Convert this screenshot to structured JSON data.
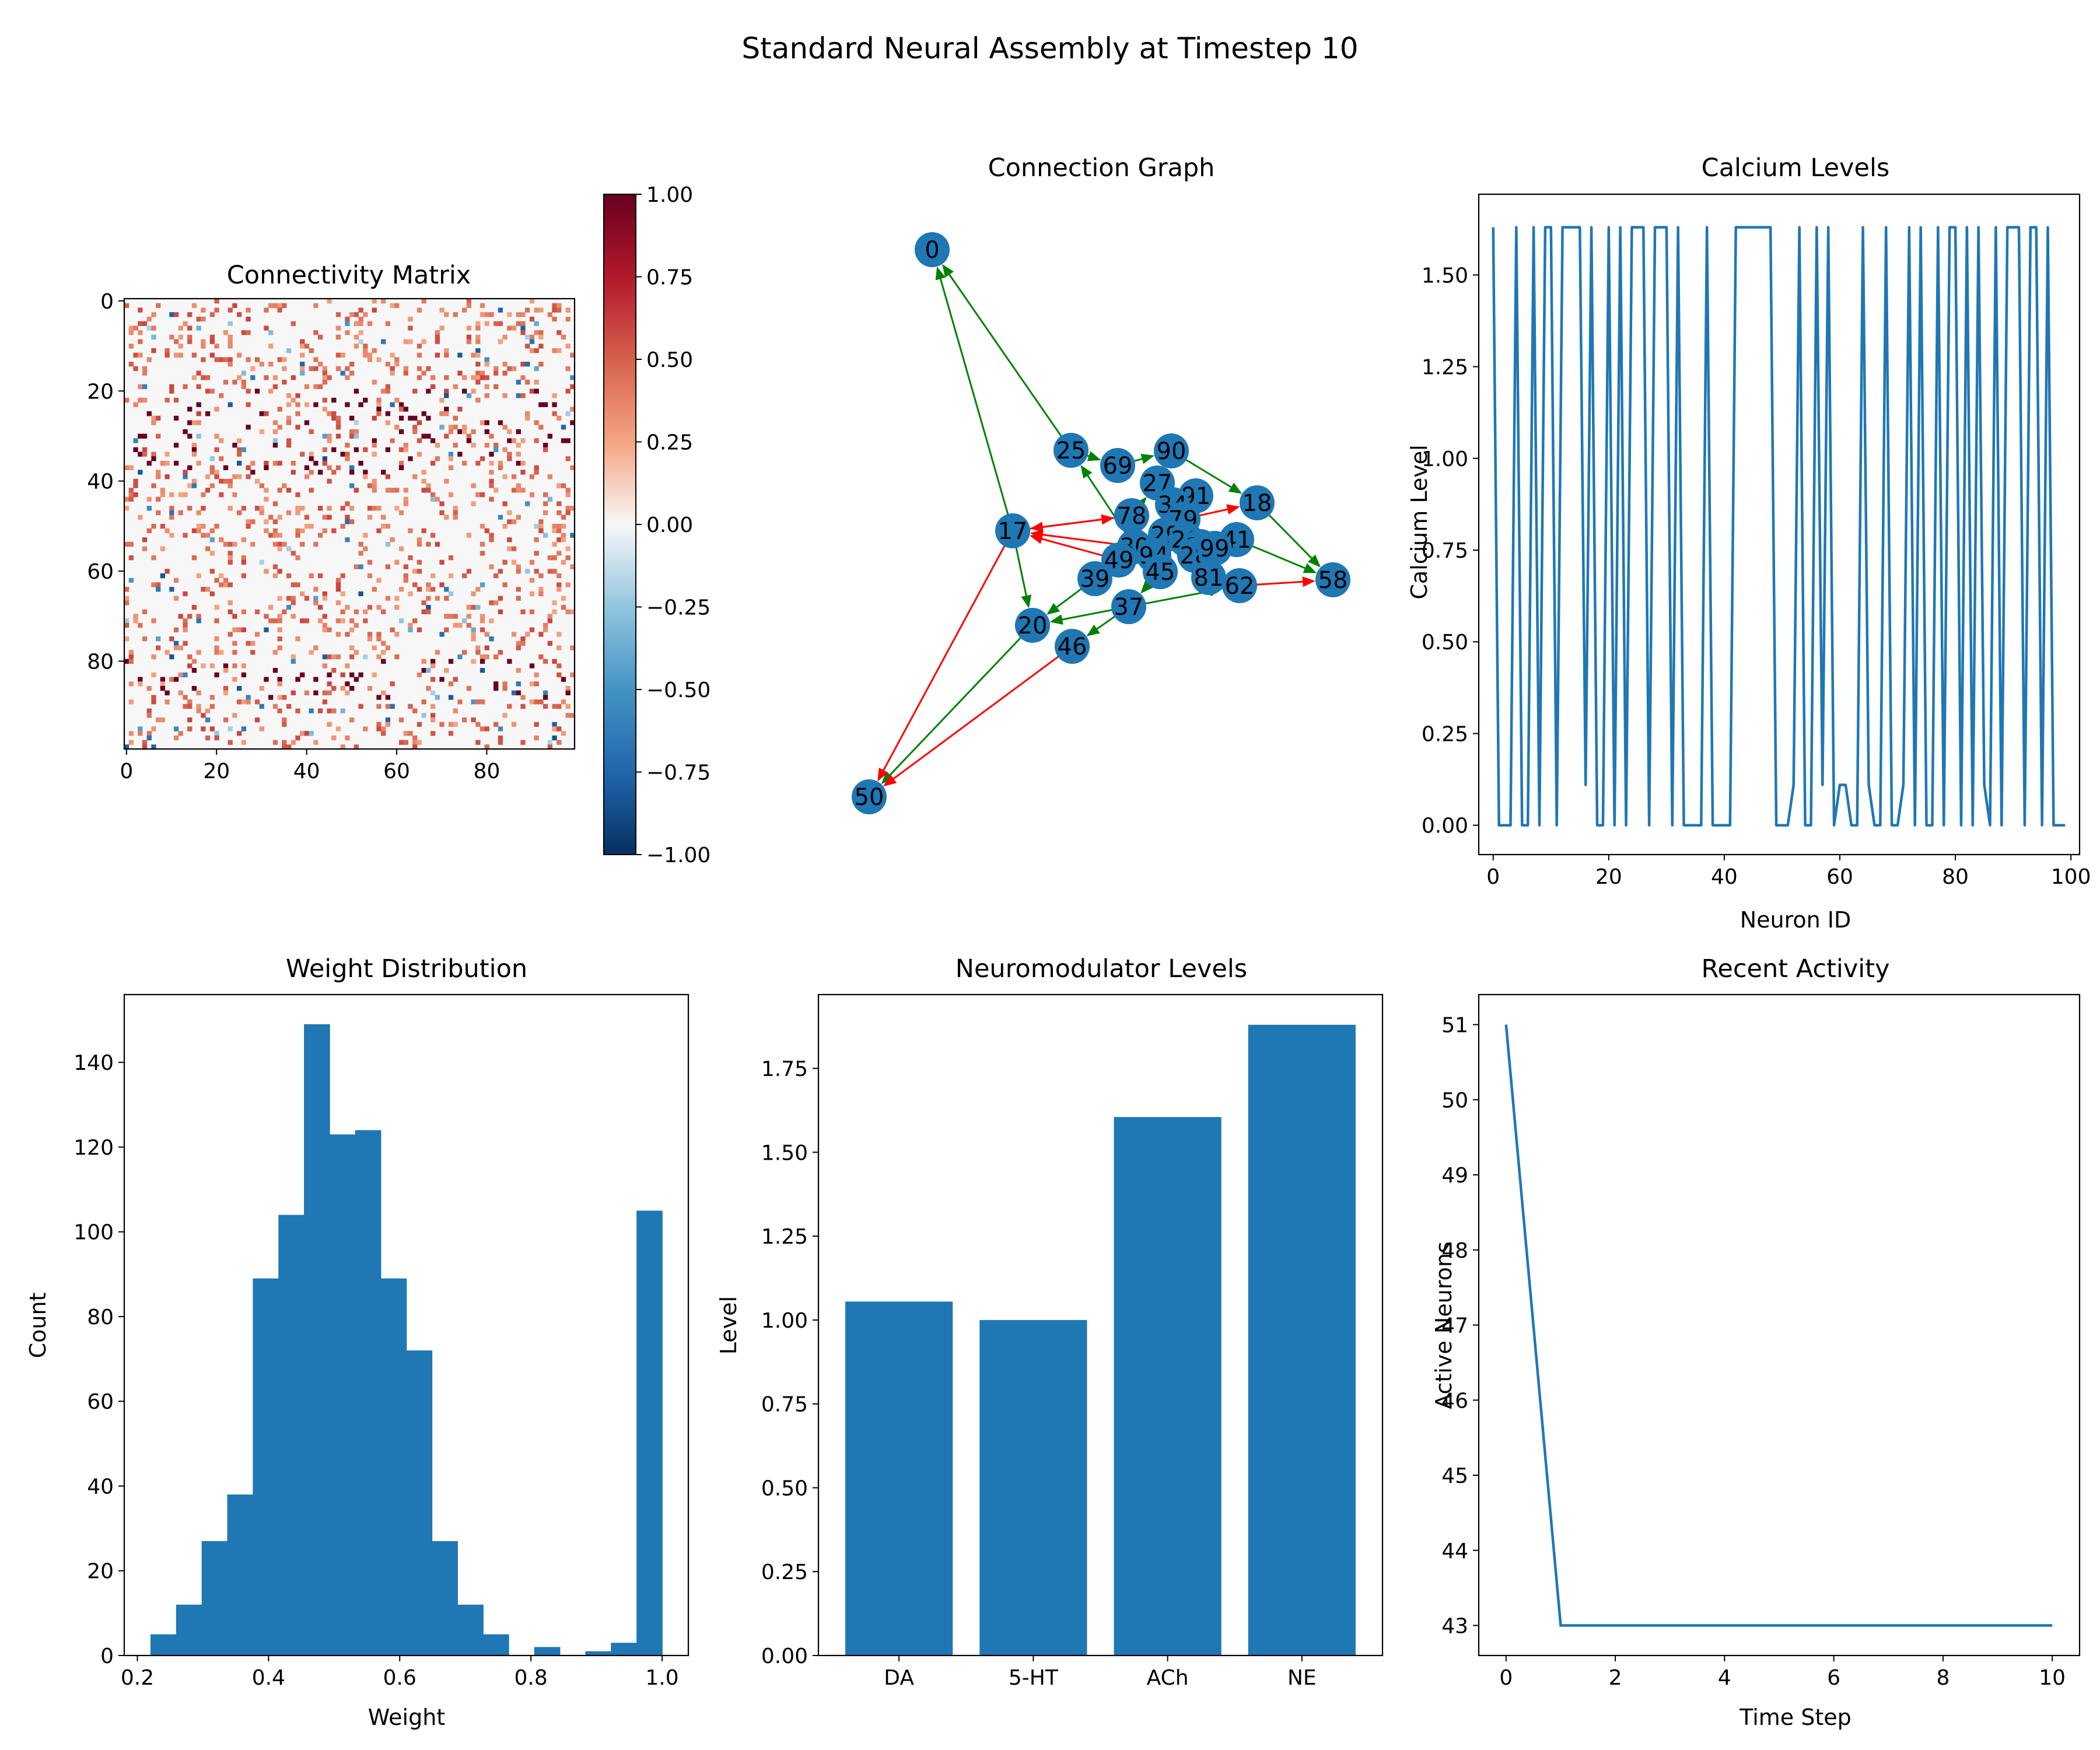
{
  "figure": {
    "title": "Standard Neural Assembly at Timestep 10"
  },
  "chart_data": [
    {
      "type": "heatmap",
      "title": "Connectivity Matrix",
      "xticks": [
        0,
        20,
        40,
        60,
        80
      ],
      "yticks": [
        0,
        20,
        40,
        60,
        80
      ],
      "shape": [
        100,
        100
      ],
      "note": "sparse random connectivity; cells rendered procedurally",
      "colormap": "RdBu_r",
      "vlim": [
        -1,
        1
      ],
      "colorbar_ticks": [
        "1.00",
        "0.75",
        "0.50",
        "0.25",
        "0.00",
        "−0.25",
        "−0.50",
        "−0.75",
        "−1.00"
      ]
    },
    {
      "type": "graph",
      "title": "Connection Graph",
      "nodes": [
        "0",
        "25",
        "69",
        "90",
        "27",
        "91",
        "34",
        "18",
        "78",
        "79",
        "17",
        "30",
        "29",
        "26",
        "23",
        "41",
        "49",
        "94",
        "28",
        "99",
        "39",
        "45",
        "81",
        "62",
        "58",
        "37",
        "20",
        "46",
        "50"
      ],
      "edges_green": [
        [
          "17",
          "0"
        ],
        [
          "25",
          "0"
        ],
        [
          "25",
          "69"
        ],
        [
          "69",
          "90"
        ],
        [
          "90",
          "18"
        ],
        [
          "18",
          "58"
        ],
        [
          "91",
          "34"
        ],
        [
          "78",
          "27"
        ],
        [
          "17",
          "20"
        ],
        [
          "20",
          "50"
        ],
        [
          "37",
          "46"
        ],
        [
          "37",
          "20"
        ],
        [
          "39",
          "20"
        ],
        [
          "37",
          "62"
        ],
        [
          "49",
          "39"
        ],
        [
          "45",
          "37"
        ],
        [
          "41",
          "58"
        ],
        [
          "30",
          "25"
        ]
      ],
      "edges_red": [
        [
          "17",
          "50"
        ],
        [
          "46",
          "50"
        ],
        [
          "62",
          "58"
        ],
        [
          "30",
          "17"
        ],
        [
          "78",
          "17"
        ],
        [
          "17",
          "78"
        ],
        [
          "79",
          "18"
        ],
        [
          "49",
          "17"
        ]
      ],
      "colors": {
        "node": "#1f77b4",
        "edge_green": "#008000",
        "edge_red": "#ff0000"
      }
    },
    {
      "type": "line",
      "title": "Calcium Levels",
      "xlabel": "Neuron ID",
      "ylabel": "Calcium Level",
      "xlim": [
        -2.5,
        101.5
      ],
      "ylim": [
        -0.08,
        1.72
      ],
      "xticks": [
        0,
        20,
        40,
        60,
        80,
        100
      ],
      "yticks": [
        "0.00",
        "0.25",
        "0.50",
        "0.75",
        "1.00",
        "1.25",
        "1.50"
      ],
      "y": [
        1.63,
        0,
        0,
        0,
        1.63,
        0,
        0,
        1.63,
        0,
        1.63,
        1.63,
        0,
        1.63,
        1.63,
        1.63,
        1.63,
        0.11,
        1.63,
        0,
        0,
        1.63,
        0,
        1.63,
        0,
        1.63,
        1.63,
        1.63,
        0,
        1.63,
        1.63,
        1.63,
        0,
        1.63,
        0,
        0,
        0,
        0,
        1.63,
        0,
        0,
        0,
        0,
        1.63,
        1.63,
        1.63,
        1.63,
        1.63,
        1.63,
        1.63,
        0,
        0,
        0,
        0.11,
        1.63,
        0,
        0,
        1.63,
        0.11,
        1.63,
        0,
        0.11,
        0.11,
        0,
        0,
        1.63,
        0.11,
        0,
        0,
        1.63,
        0,
        0,
        0.11,
        1.63,
        0,
        1.63,
        0,
        0,
        1.63,
        0,
        1.63,
        1.63,
        0,
        1.63,
        0,
        1.63,
        0.11,
        0,
        1.63,
        0,
        1.63,
        1.63,
        1.63,
        0,
        1.63,
        1.63,
        0,
        1.63,
        0,
        0,
        0
      ]
    },
    {
      "type": "bar",
      "subtype": "histogram",
      "title": "Weight Distribution",
      "xlabel": "Weight",
      "ylabel": "Count",
      "xlim": [
        0.18,
        1.04
      ],
      "ylim": [
        0,
        156
      ],
      "xticks": [
        "0.2",
        "0.4",
        "0.6",
        "0.8",
        "1.0"
      ],
      "yticks": [
        0,
        20,
        40,
        60,
        80,
        100,
        120,
        140
      ],
      "bins_start": 0.22,
      "bin_width": 0.039,
      "values": [
        5,
        12,
        27,
        38,
        89,
        104,
        149,
        123,
        124,
        89,
        72,
        27,
        12,
        5,
        0,
        2,
        0,
        1,
        3,
        105
      ]
    },
    {
      "type": "bar",
      "title": "Neuromodulator Levels",
      "xlabel": "",
      "ylabel": "Level",
      "categories": [
        "DA",
        "5-HT",
        "ACh",
        "NE"
      ],
      "values": [
        1.055,
        1.0,
        1.605,
        1.88
      ],
      "ylim": [
        0,
        1.97
      ],
      "yticks": [
        "0.00",
        "0.25",
        "0.50",
        "0.75",
        "1.00",
        "1.25",
        "1.50",
        "1.75"
      ]
    },
    {
      "type": "line",
      "title": "Recent Activity",
      "xlabel": "Time Step",
      "ylabel": "Active Neurons",
      "x": [
        0,
        1,
        2,
        3,
        4,
        5,
        6,
        7,
        8,
        9,
        10
      ],
      "y": [
        51,
        43,
        43,
        43,
        43,
        43,
        43,
        43,
        43,
        43,
        43
      ],
      "xlim": [
        -0.5,
        10.5
      ],
      "ylim": [
        42.6,
        51.4
      ],
      "xticks": [
        0,
        2,
        4,
        6,
        8,
        10
      ],
      "yticks": [
        43,
        44,
        45,
        46,
        47,
        48,
        49,
        50,
        51
      ]
    }
  ],
  "colors": {
    "series": "#1f77b4",
    "axis": "#000000"
  }
}
